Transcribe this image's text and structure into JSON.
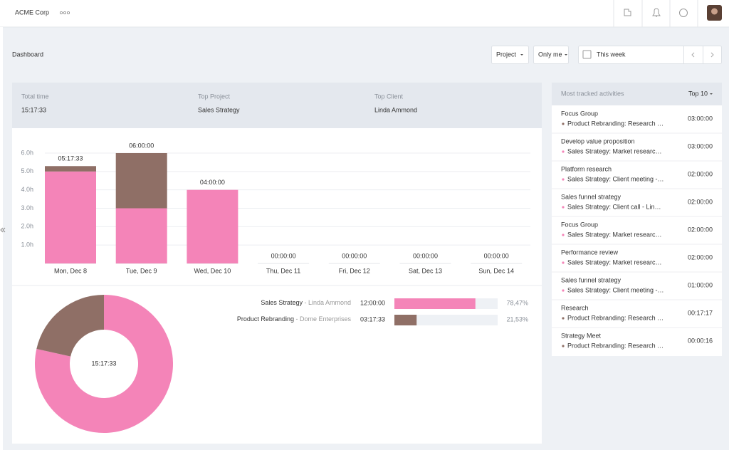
{
  "topbar": {
    "company": "ACME Corp"
  },
  "header": {
    "title": "Dashboard",
    "filters": [
      "Project",
      "Only me"
    ],
    "date_range": "This week"
  },
  "summary": [
    {
      "label": "Total time",
      "value": "15:17:33"
    },
    {
      "label": "Top Project",
      "value": "Sales Strategy"
    },
    {
      "label": "Top Client",
      "value": "Linda Ammond"
    }
  ],
  "chart_data": [
    {
      "type": "bar",
      "stacked": true,
      "categories": [
        "Mon, Dec 8",
        "Tue, Dec 9",
        "Wed, Dec 10",
        "Thu, Dec 11",
        "Fri, Dec 12",
        "Sat, Dec 13",
        "Sun, Dec 14"
      ],
      "series": [
        {
          "name": "Sales Strategy",
          "color": "#f484b8",
          "values": [
            5,
            3,
            4,
            0,
            0,
            0,
            0
          ]
        },
        {
          "name": "Product Rebranding",
          "color": "#8f6f66",
          "values": [
            0.2925,
            3,
            0,
            0,
            0,
            0,
            0
          ]
        }
      ],
      "totals": [
        "05:17:33",
        "06:00:00",
        "04:00:00",
        "00:00:00",
        "00:00:00",
        "00:00:00",
        "00:00:00"
      ],
      "ylim": [
        0,
        6
      ],
      "yticks": [
        {
          "value": 1,
          "label": "1.0h"
        },
        {
          "value": 2,
          "label": "2.0h"
        },
        {
          "value": 3,
          "label": "3.0h"
        },
        {
          "value": 4,
          "label": "4.0h"
        },
        {
          "value": 5,
          "label": "5.0h"
        },
        {
          "value": 6,
          "label": "6.0h"
        }
      ],
      "grid": true
    },
    {
      "type": "pie",
      "donut": true,
      "center_label": "15:17:33",
      "categories": [
        "Sales Strategy",
        "Product Rebranding"
      ],
      "clients": [
        "Linda Ammond",
        "Dome Enterprises"
      ],
      "durations": [
        "12:00:00",
        "03:17:33"
      ],
      "values": [
        78.47,
        21.53
      ],
      "value_labels": [
        "78,47%",
        "21,53%"
      ],
      "colors": [
        "#f484b8",
        "#8f6f66"
      ]
    }
  ],
  "activities": {
    "title": "Most tracked activities",
    "sort": "Top 10",
    "items": [
      {
        "name": "Focus Group",
        "detail": "Product Rebranding: Research …",
        "duration": "03:00:00",
        "color": "#8f6f66"
      },
      {
        "name": "Develop value proposition",
        "detail": "Sales Strategy: Market researc…",
        "duration": "03:00:00",
        "color": "#f484b8"
      },
      {
        "name": "Platform research",
        "detail": "Sales Strategy: Client meeting -…",
        "duration": "02:00:00",
        "color": "#f484b8"
      },
      {
        "name": "Sales funnel strategy",
        "detail": "Sales Strategy: Client call - Lin…",
        "duration": "02:00:00",
        "color": "#f484b8"
      },
      {
        "name": "Focus Group",
        "detail": "Sales Strategy: Market researc…",
        "duration": "02:00:00",
        "color": "#f484b8"
      },
      {
        "name": "Performance review",
        "detail": "Sales Strategy: Market researc…",
        "duration": "02:00:00",
        "color": "#f484b8"
      },
      {
        "name": "Sales funnel strategy",
        "detail": "Sales Strategy: Client meeting -…",
        "duration": "01:00:00",
        "color": "#f484b8"
      },
      {
        "name": "Research",
        "detail": "Product Rebranding: Research …",
        "duration": "00:17:17",
        "color": "#8f6f66"
      },
      {
        "name": "Strategy Meet",
        "detail": "Product Rebranding: Research …",
        "duration": "00:00:16",
        "color": "#8f6f66"
      }
    ]
  }
}
